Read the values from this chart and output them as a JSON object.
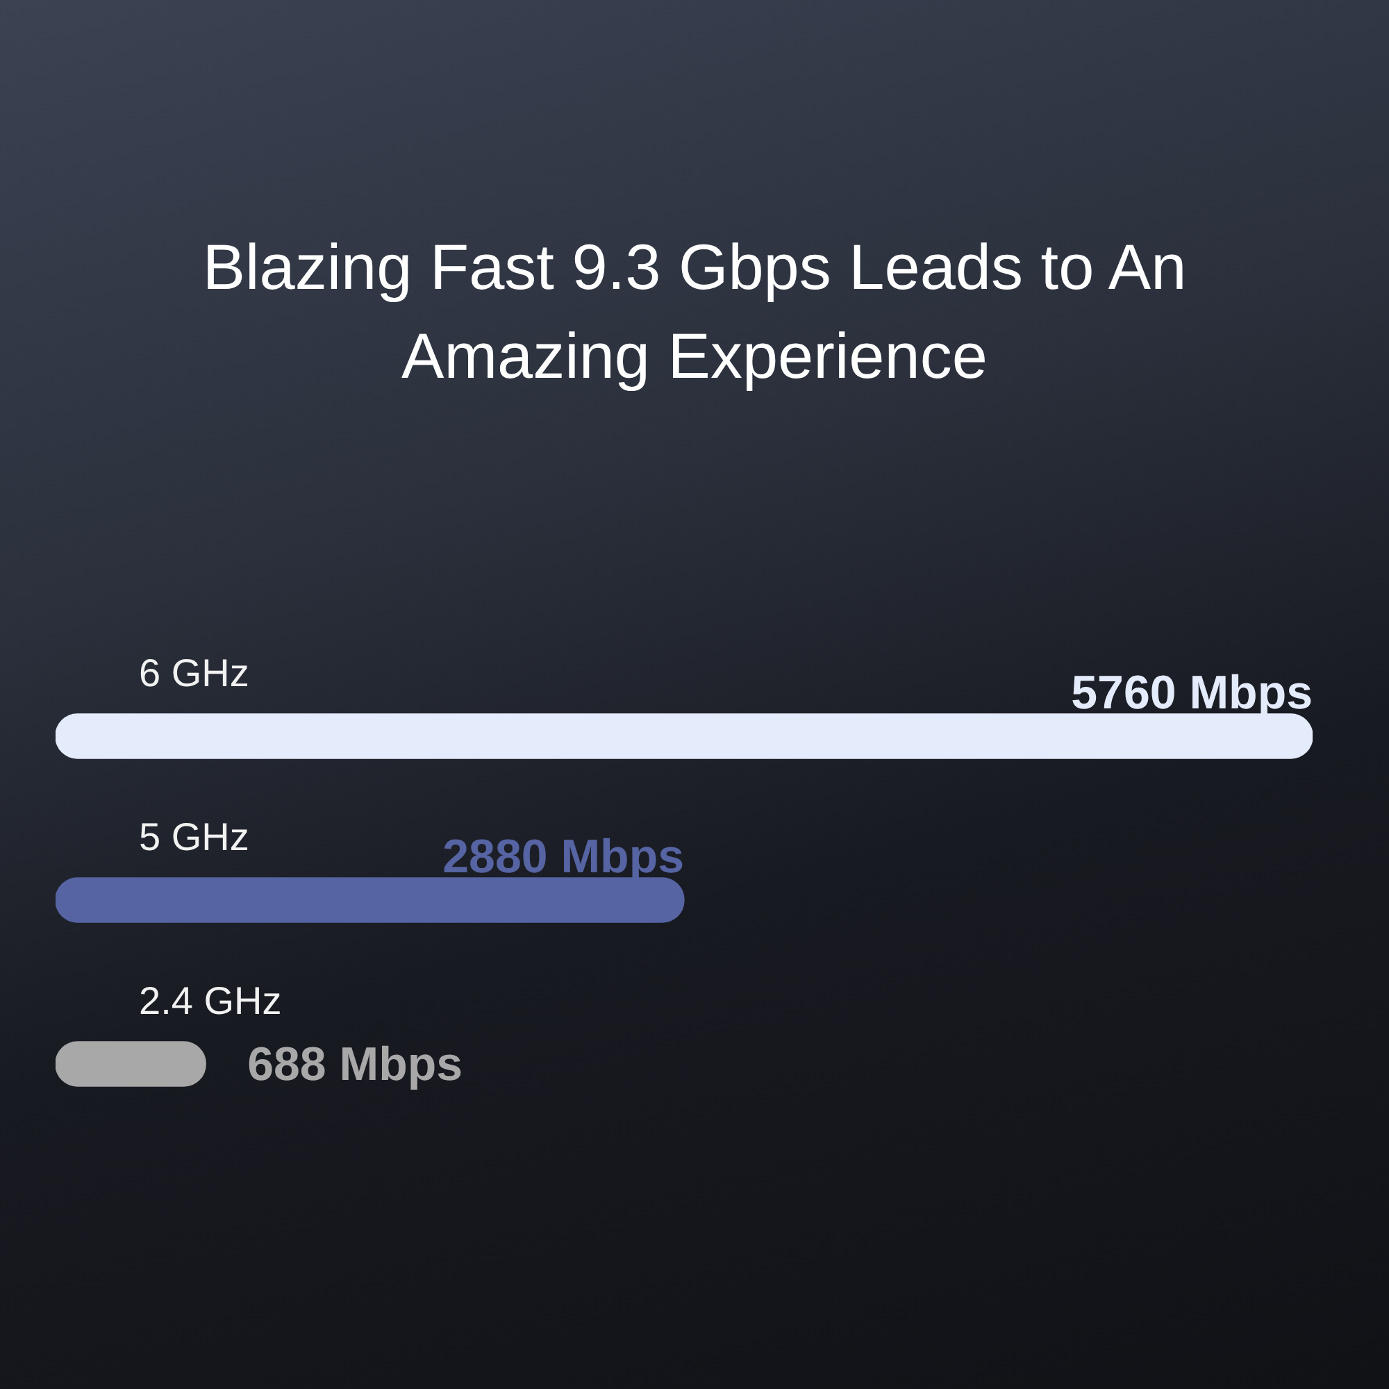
{
  "chart_data": {
    "type": "bar",
    "orientation": "horizontal",
    "title": "Blazing Fast 9.3 Gbps Leads to An Amazing Experience",
    "categories": [
      "6 GHz",
      "5 GHz",
      "2.4 GHz"
    ],
    "values": [
      5760,
      2880,
      688
    ],
    "colors": [
      "#e4ebfb",
      "#5664a3",
      "#a8a8a8"
    ],
    "value_labels": [
      "5760 Mbps",
      "2880 Mbps",
      "688 Mbps"
    ],
    "legend": false
  }
}
